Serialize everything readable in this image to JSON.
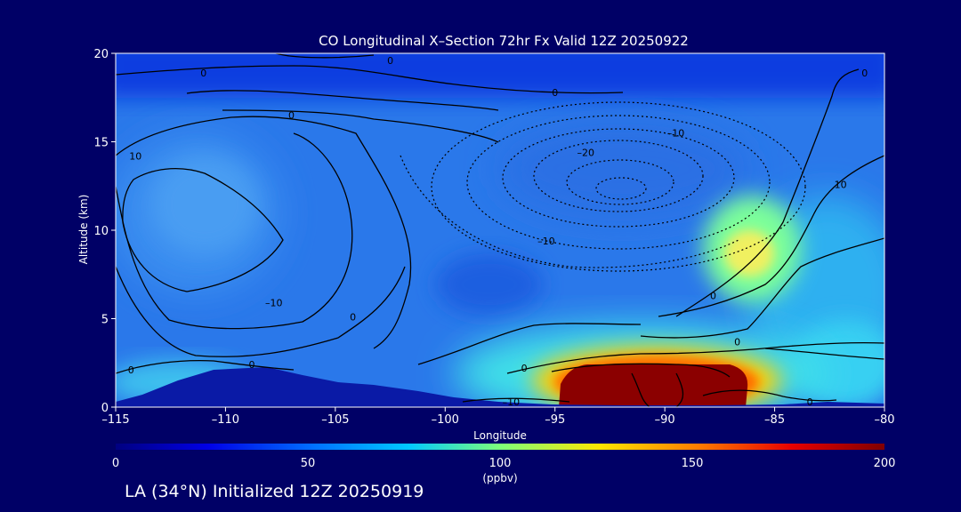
{
  "chart_data": {
    "type": "heatmap",
    "title": "CO Longitudinal X–Section 72hr  Fx Valid 12Z 20250922",
    "xlabel": "Longitude",
    "ylabel": "Altitude (km)",
    "xlim": [
      -115,
      -80
    ],
    "ylim": [
      0,
      20
    ],
    "x_ticks": [
      -115,
      -110,
      -105,
      -100,
      -95,
      -90,
      -85,
      -80
    ],
    "x_tick_labels": [
      "–115",
      "–110",
      "–105",
      "–100",
      "–95",
      "–90",
      "–85",
      "–80"
    ],
    "y_ticks": [
      0,
      5,
      10,
      15,
      20
    ],
    "y_tick_labels": [
      "0",
      "5",
      "10",
      "15",
      "20"
    ],
    "colorbar": {
      "min": 0,
      "max": 200,
      "ticks": [
        0,
        50,
        100,
        150,
        200
      ],
      "tick_labels": [
        "0",
        "50",
        "100",
        "150",
        "200"
      ],
      "unit": "(ppbv)"
    },
    "colors": {
      "background": "#000066",
      "terrain": "#0a1aa6",
      "base_field": "#1f6fe8",
      "high_layer": "#0f3ce0",
      "polluted_core": "#8b0000"
    },
    "features": [
      {
        "name": "boundary-layer plume",
        "lon": [
          -95.5,
          -86.5
        ],
        "alt": [
          0,
          2.4
        ],
        "value": 200
      },
      {
        "name": "mid-level maximum",
        "lon": [
          -86.5,
          -84
        ],
        "alt": [
          7.5,
          10
        ],
        "value": 120
      }
    ],
    "contour_labels": [
      {
        "text": "0",
        "lon": -111,
        "alt": 18.9
      },
      {
        "text": "0",
        "lon": -102.5,
        "alt": 19.6
      },
      {
        "text": "0",
        "lon": -95,
        "alt": 17.8
      },
      {
        "text": "0",
        "lon": -107,
        "alt": 16.5
      },
      {
        "text": "10",
        "lon": -114.1,
        "alt": 14.2
      },
      {
        "text": "–10",
        "lon": -89.5,
        "alt": 15.5
      },
      {
        "text": "–20",
        "lon": -93.6,
        "alt": 14.4
      },
      {
        "text": "–10",
        "lon": -95.4,
        "alt": 9.4
      },
      {
        "text": "10",
        "lon": -82,
        "alt": 12.6
      },
      {
        "text": "–10",
        "lon": -107.8,
        "alt": 5.9
      },
      {
        "text": "0",
        "lon": -104.2,
        "alt": 5.1
      },
      {
        "text": "0",
        "lon": -87.8,
        "alt": 6.3
      },
      {
        "text": "0",
        "lon": -86.7,
        "alt": 3.7
      },
      {
        "text": "0",
        "lon": -96.4,
        "alt": 2.2
      },
      {
        "text": "0",
        "lon": -114.3,
        "alt": 2.1
      },
      {
        "text": "0",
        "lon": -108.8,
        "alt": 2.4
      },
      {
        "text": "–10",
        "lon": -97,
        "alt": 0.3
      },
      {
        "text": "0",
        "lon": -83.4,
        "alt": 0.3
      },
      {
        "text": "0",
        "lon": -80.9,
        "alt": 18.9
      }
    ]
  },
  "footer": {
    "text": "LA (34°N) Initialized 12Z 20250919"
  }
}
